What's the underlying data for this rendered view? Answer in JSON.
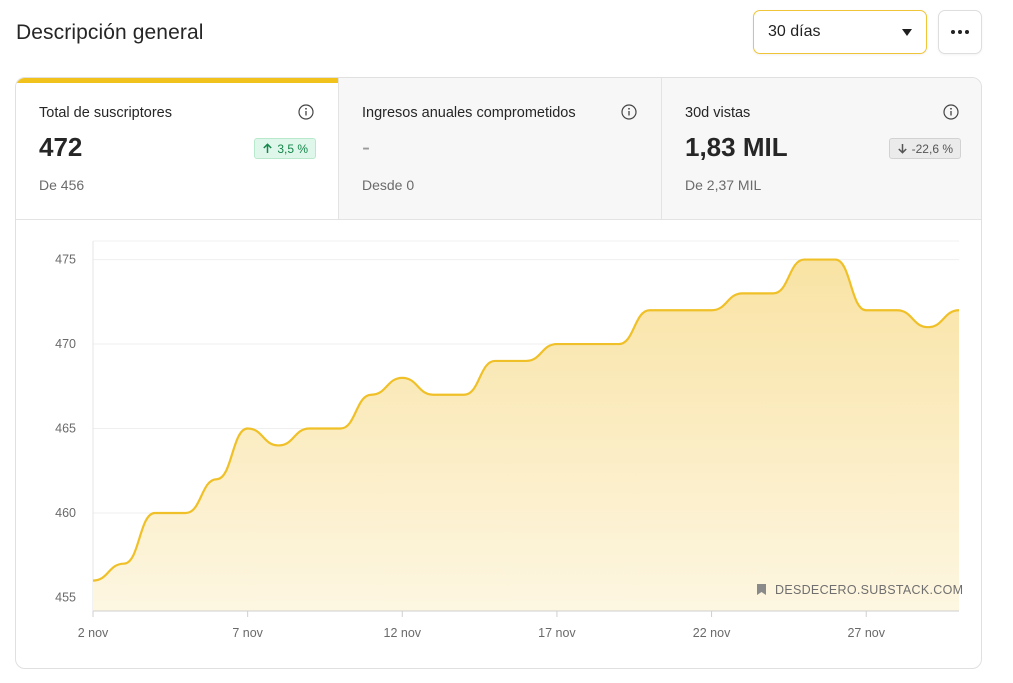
{
  "header": {
    "title": "Descripción general",
    "range_value": "30 días"
  },
  "stats": [
    {
      "label": "Total de suscriptores",
      "value": "472",
      "badge": "3,5 %",
      "badge_dir": "up",
      "sub": "De 456"
    },
    {
      "label": "Ingresos anuales comprometidos",
      "value": "-",
      "badge": "",
      "badge_dir": "",
      "sub": "Desde 0"
    },
    {
      "label": "30d vistas",
      "value": "1,83 MIL",
      "badge": "-22,6 %",
      "badge_dir": "down",
      "sub": "De 2,37 MIL"
    }
  ],
  "colors": {
    "accent": "#f1c21b",
    "line": "#f0c028",
    "fill_top": "#f9e3a4",
    "fill_bottom": "#fdf6e1"
  },
  "chart_data": {
    "type": "area",
    "x": [
      "2 nov",
      "3 nov",
      "4 nov",
      "5 nov",
      "6 nov",
      "7 nov",
      "8 nov",
      "9 nov",
      "10 nov",
      "11 nov",
      "12 nov",
      "13 nov",
      "14 nov",
      "15 nov",
      "16 nov",
      "17 nov",
      "18 nov",
      "19 nov",
      "20 nov",
      "21 nov",
      "22 nov",
      "23 nov",
      "24 nov",
      "25 nov",
      "26 nov",
      "27 nov",
      "28 nov",
      "29 nov",
      "30 nov"
    ],
    "values": [
      456,
      457,
      460,
      460,
      462,
      465,
      464,
      465,
      465,
      467,
      468,
      467,
      467,
      469,
      469,
      470,
      470,
      470,
      472,
      472,
      472,
      473,
      473,
      475,
      475,
      472,
      472,
      471,
      472
    ],
    "x_tick_labels": [
      "2 nov",
      "7 nov",
      "12 nov",
      "17 nov",
      "22 nov",
      "27 nov"
    ],
    "y_ticks": [
      455,
      460,
      465,
      470,
      475
    ],
    "ylim": [
      454.2,
      476.1
    ],
    "grid": true,
    "watermark": "DESDECERO.SUBSTACK.COM"
  }
}
